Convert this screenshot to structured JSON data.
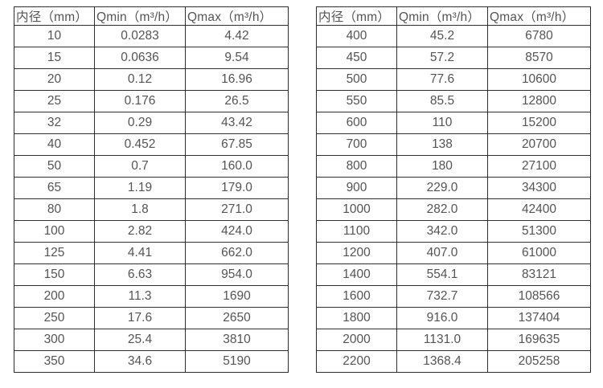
{
  "tables": [
    {
      "name": "flow-spec-small-diameters",
      "headers": [
        "内径（mm）",
        "Qmin（m³/h）",
        "Qmax（m³/h）"
      ],
      "rows": [
        [
          "10",
          "0.0283",
          "4.42"
        ],
        [
          "15",
          "0.0636",
          "9.54"
        ],
        [
          "20",
          "0.12",
          "16.96"
        ],
        [
          "25",
          "0.176",
          "26.5"
        ],
        [
          "32",
          "0.29",
          "43.42"
        ],
        [
          "40",
          "0.452",
          "67.85"
        ],
        [
          "50",
          "0.7",
          "160.0"
        ],
        [
          "65",
          "1.19",
          "179.0"
        ],
        [
          "80",
          "1.8",
          "271.0"
        ],
        [
          "100",
          "2.82",
          "424.0"
        ],
        [
          "125",
          "4.41",
          "662.0"
        ],
        [
          "150",
          "6.63",
          "954.0"
        ],
        [
          "200",
          "11.3",
          "1690"
        ],
        [
          "250",
          "17.6",
          "2650"
        ],
        [
          "300",
          "25.4",
          "3810"
        ],
        [
          "350",
          "34.6",
          "5190"
        ]
      ]
    },
    {
      "name": "flow-spec-large-diameters",
      "headers": [
        "内径（mm）",
        "Qmin（m³/h）",
        "Qmax（m³/h）"
      ],
      "rows": [
        [
          "400",
          "45.2",
          "6780"
        ],
        [
          "450",
          "57.2",
          "8570"
        ],
        [
          "500",
          "77.6",
          "10600"
        ],
        [
          "550",
          "85.5",
          "12800"
        ],
        [
          "600",
          "110",
          "15200"
        ],
        [
          "700",
          "138",
          "20700"
        ],
        [
          "800",
          "180",
          "27100"
        ],
        [
          "900",
          "229.0",
          "34300"
        ],
        [
          "1000",
          "282.0",
          "42400"
        ],
        [
          "1100",
          "342.0",
          "51300"
        ],
        [
          "1200",
          "407.0",
          "61000"
        ],
        [
          "1400",
          "554.1",
          "83121"
        ],
        [
          "1600",
          "732.7",
          "108566"
        ],
        [
          "1800",
          "916.0",
          "137404"
        ],
        [
          "2000",
          "1131.0",
          "169635"
        ],
        [
          "2200",
          "1368.4",
          "205258"
        ]
      ]
    }
  ],
  "colors": {
    "border": "#2e2e2e",
    "text": "#545454",
    "background": "#ffffff"
  }
}
